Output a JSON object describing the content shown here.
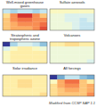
{
  "chart_data": [
    {
      "type": "heatmap",
      "title": "Well-mixed greenhouse gases",
      "x": [
        -75,
        -45,
        -15,
        15,
        45,
        75
      ],
      "y": [
        900,
        700,
        500,
        300,
        100
      ],
      "xlim": [
        -90,
        90
      ],
      "ylim": [
        1000,
        0
      ],
      "zlim": [
        -1,
        1
      ],
      "tick_labels": false,
      "cells": [
        [
          0.3,
          0.4,
          0.4,
          0.4,
          0.5,
          0.7
        ],
        [
          0.3,
          0.4,
          0.5,
          0.5,
          0.5,
          0.6
        ],
        [
          0.3,
          0.5,
          0.6,
          0.6,
          0.5,
          0.5
        ],
        [
          0.2,
          0.5,
          0.8,
          0.8,
          0.5,
          0.3
        ],
        [
          -0.3,
          -0.4,
          -0.3,
          -0.3,
          -0.4,
          -0.3
        ]
      ]
    },
    {
      "type": "heatmap",
      "title": "Sulfate aerosols",
      "x": [
        -75,
        -45,
        -15,
        15,
        45,
        75
      ],
      "y": [
        900,
        700,
        500,
        300,
        100
      ],
      "xlim": [
        -90,
        90
      ],
      "ylim": [
        1000,
        0
      ],
      "zlim": [
        -1,
        1
      ],
      "tick_labels": false,
      "cells": [
        [
          -0.1,
          -0.1,
          -0.1,
          -0.2,
          -0.3,
          -0.3
        ],
        [
          -0.1,
          -0.1,
          -0.1,
          -0.2,
          -0.3,
          -0.3
        ],
        [
          -0.1,
          -0.1,
          -0.2,
          -0.2,
          -0.3,
          -0.2
        ],
        [
          -0.1,
          -0.1,
          -0.2,
          -0.2,
          -0.2,
          -0.2
        ],
        [
          0.0,
          0.0,
          0.0,
          0.0,
          0.0,
          0.0
        ]
      ]
    },
    {
      "type": "heatmap",
      "title": "Stratospheric and tropospheric ozone",
      "x": [
        -75,
        -45,
        -15,
        15,
        45,
        75
      ],
      "y": [
        900,
        700,
        500,
        300,
        100
      ],
      "xlim": [
        -90,
        90
      ],
      "ylim": [
        1000,
        0
      ],
      "zlim": [
        -1,
        1
      ],
      "tick_labels": false,
      "cells": [
        [
          0.0,
          0.1,
          0.1,
          0.1,
          0.1,
          0.1
        ],
        [
          0.0,
          0.1,
          0.1,
          0.1,
          0.1,
          0.1
        ],
        [
          0.0,
          0.1,
          0.1,
          0.1,
          0.1,
          0.1
        ],
        [
          -0.2,
          0.0,
          0.1,
          0.1,
          0.0,
          -0.1
        ],
        [
          -1.0,
          -0.4,
          -0.2,
          -0.2,
          -0.3,
          -0.5
        ]
      ]
    },
    {
      "type": "heatmap",
      "title": "Volcanoes",
      "x": [
        -75,
        -45,
        -15,
        15,
        45,
        75
      ],
      "y": [
        900,
        700,
        500,
        300,
        100
      ],
      "xlim": [
        -90,
        90
      ],
      "ylim": [
        1000,
        0
      ],
      "zlim": [
        -1,
        1
      ],
      "tick_labels": false,
      "cells": [
        [
          -0.1,
          -0.1,
          -0.1,
          -0.1,
          -0.1,
          -0.2
        ],
        [
          -0.1,
          -0.1,
          -0.1,
          -0.1,
          -0.1,
          -0.1
        ],
        [
          -0.1,
          -0.1,
          -0.1,
          -0.1,
          -0.1,
          -0.1
        ],
        [
          -0.1,
          -0.1,
          -0.1,
          -0.1,
          -0.1,
          -0.1
        ],
        [
          0.1,
          0.1,
          0.2,
          0.2,
          0.1,
          0.1
        ]
      ]
    },
    {
      "type": "heatmap",
      "title": "Solar irradiance",
      "x": [
        -75,
        -45,
        -15,
        15,
        45,
        75
      ],
      "y": [
        900,
        700,
        500,
        300,
        100
      ],
      "xlim": [
        -90,
        90
      ],
      "ylim": [
        1000,
        0
      ],
      "zlim": [
        -1,
        1
      ],
      "tick_labels": false,
      "cells": [
        [
          0.1,
          0.1,
          0.1,
          0.1,
          0.1,
          0.2
        ],
        [
          0.1,
          0.1,
          0.1,
          0.1,
          0.1,
          0.1
        ],
        [
          0.1,
          0.1,
          0.2,
          0.2,
          0.1,
          0.1
        ],
        [
          0.1,
          0.1,
          0.2,
          0.2,
          0.1,
          0.1
        ],
        [
          0.1,
          0.1,
          0.1,
          0.1,
          0.1,
          0.1
        ]
      ]
    },
    {
      "type": "heatmap",
      "title": "All forcings",
      "x": [
        -75,
        -45,
        -15,
        15,
        45,
        75
      ],
      "y": [
        900,
        700,
        500,
        300,
        100
      ],
      "xlim": [
        -90,
        90
      ],
      "ylim": [
        1000,
        0
      ],
      "zlim": [
        -1,
        1
      ],
      "tick_labels": false,
      "cells": [
        [
          0.2,
          0.3,
          0.3,
          0.3,
          0.3,
          0.5
        ],
        [
          0.2,
          0.3,
          0.4,
          0.4,
          0.3,
          0.4
        ],
        [
          0.2,
          0.4,
          0.5,
          0.5,
          0.3,
          0.4
        ],
        [
          0.0,
          0.4,
          0.6,
          0.6,
          0.3,
          0.1
        ],
        [
          -1.1,
          -0.6,
          -0.3,
          -0.3,
          -0.5,
          -0.6
        ]
      ]
    }
  ],
  "footer": "Modified from CCSP SAP 1.1"
}
